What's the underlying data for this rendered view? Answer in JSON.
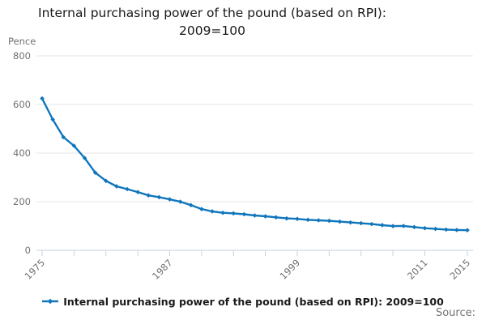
{
  "header": {
    "title": "Internal purchasing power of the pound (based on RPI): 2009=100"
  },
  "legend": {
    "label": "Internal purchasing power of the pound (based on RPI): 2009=100"
  },
  "footer": {
    "source_label": "Source:"
  },
  "colors": {
    "line": "#1076bc",
    "grid": "#e6e6e6",
    "axis": "#c7d1e0",
    "text_muted": "#707070",
    "text_dark": "#1a1a1a"
  },
  "chart_data": {
    "type": "line",
    "title": "Internal purchasing power of the pound (based on RPI): 2009=100",
    "xlabel": "",
    "ylabel": "Pence",
    "unit_label": "Pence",
    "ylim": [
      0,
      800
    ],
    "yticks": [
      0,
      200,
      400,
      600,
      800
    ],
    "xlim": [
      1975,
      2015
    ],
    "xticks_all": [
      1975,
      1978,
      1981,
      1984,
      1987,
      1990,
      1993,
      1996,
      1999,
      2002,
      2005,
      2008,
      2011,
      2015
    ],
    "xticks_labeled": [
      1975,
      1987,
      1999,
      2011,
      2015
    ],
    "grid": true,
    "legend_position": "bottom",
    "series": [
      {
        "name": "Internal purchasing power of the pound (based on RPI): 2009=100",
        "color": "#1076bc",
        "marker": "diamond",
        "x": [
          1975,
          1976,
          1977,
          1978,
          1979,
          1980,
          1981,
          1982,
          1983,
          1984,
          1985,
          1986,
          1987,
          1988,
          1989,
          1990,
          1991,
          1992,
          1993,
          1994,
          1995,
          1996,
          1997,
          1998,
          1999,
          2000,
          2001,
          2002,
          2003,
          2004,
          2005,
          2006,
          2007,
          2008,
          2009,
          2010,
          2011,
          2012,
          2013,
          2014,
          2015
        ],
        "values": [
          624.9,
          538.3,
          465.6,
          430.0,
          379.6,
          319.4,
          285.7,
          263.2,
          251.7,
          239.6,
          225.9,
          218.5,
          209.7,
          199.9,
          185.5,
          169.5,
          160.1,
          154.3,
          151.9,
          148.3,
          143.3,
          139.9,
          135.7,
          131.2,
          129.2,
          125.5,
          123.3,
          121.3,
          117.9,
          114.5,
          111.3,
          107.9,
          103.4,
          99.5,
          100.0,
          95.6,
          90.9,
          88.0,
          85.4,
          83.5,
          82.7
        ]
      }
    ]
  }
}
